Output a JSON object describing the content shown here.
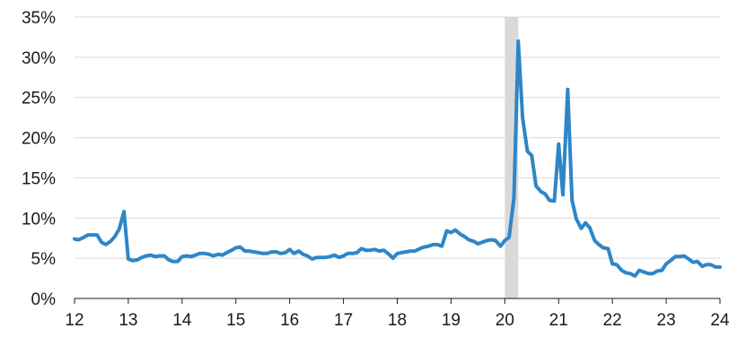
{
  "chart_data": {
    "type": "line",
    "title": "",
    "xlabel": "",
    "ylabel": "",
    "xlim": [
      2012,
      2024
    ],
    "ylim": [
      0,
      35
    ],
    "grid": true,
    "legend": "none",
    "y_tick_values": [
      0,
      5,
      10,
      15,
      20,
      25,
      30,
      35
    ],
    "y_tick_labels": [
      "0%",
      "5%",
      "10%",
      "15%",
      "20%",
      "25%",
      "30%",
      "35%"
    ],
    "x_tick_values": [
      2012,
      2013,
      2014,
      2015,
      2016,
      2017,
      2018,
      2019,
      2020,
      2021,
      2022,
      2023,
      2024
    ],
    "x_tick_labels": [
      "12",
      "13",
      "14",
      "15",
      "16",
      "17",
      "18",
      "19",
      "20",
      "21",
      "22",
      "23",
      "24"
    ],
    "shaded_region": {
      "x_start": 2020.0,
      "x_end": 2020.25,
      "color": "#d9d9d9"
    },
    "line_color": "#2e86c8",
    "series": [
      {
        "x": [
          2012.0,
          2012.08,
          2012.17,
          2012.25,
          2012.33,
          2012.42,
          2012.5,
          2012.58,
          2012.67,
          2012.75,
          2012.83,
          2012.92,
          2013.0,
          2013.08,
          2013.17,
          2013.25,
          2013.33,
          2013.42,
          2013.5,
          2013.58,
          2013.67,
          2013.75,
          2013.83,
          2013.92,
          2014.0,
          2014.08,
          2014.17,
          2014.25,
          2014.33,
          2014.42,
          2014.5,
          2014.58,
          2014.67,
          2014.75,
          2014.83,
          2014.92,
          2015.0,
          2015.08,
          2015.17,
          2015.25,
          2015.33,
          2015.42,
          2015.5,
          2015.58,
          2015.67,
          2015.75,
          2015.83,
          2015.92,
          2016.0,
          2016.08,
          2016.17,
          2016.25,
          2016.33,
          2016.42,
          2016.5,
          2016.58,
          2016.67,
          2016.75,
          2016.83,
          2016.92,
          2017.0,
          2017.08,
          2017.17,
          2017.25,
          2017.33,
          2017.42,
          2017.5,
          2017.58,
          2017.67,
          2017.75,
          2017.83,
          2017.92,
          2018.0,
          2018.08,
          2018.17,
          2018.25,
          2018.33,
          2018.42,
          2018.5,
          2018.58,
          2018.67,
          2018.75,
          2018.83,
          2018.92,
          2019.0,
          2019.08,
          2019.17,
          2019.25,
          2019.33,
          2019.42,
          2019.5,
          2019.58,
          2019.67,
          2019.75,
          2019.83,
          2019.92,
          2020.0,
          2020.08,
          2020.17,
          2020.25,
          2020.33,
          2020.42,
          2020.5,
          2020.58,
          2020.67,
          2020.75,
          2020.83,
          2020.92,
          2021.0,
          2021.08,
          2021.17,
          2021.25,
          2021.33,
          2021.42,
          2021.5,
          2021.58,
          2021.67,
          2021.75,
          2021.83,
          2021.92,
          2022.0,
          2022.08,
          2022.17,
          2022.25,
          2022.33,
          2022.42,
          2022.5,
          2022.58,
          2022.67,
          2022.75,
          2022.83,
          2022.92,
          2023.0,
          2023.08,
          2023.17,
          2023.25,
          2023.33,
          2023.42,
          2023.5,
          2023.58,
          2023.67,
          2023.75,
          2023.83,
          2023.92,
          2024.0
        ],
        "y": [
          7.4,
          7.3,
          7.6,
          7.9,
          7.9,
          7.9,
          7.0,
          6.7,
          7.1,
          7.7,
          8.6,
          10.8,
          4.9,
          4.7,
          4.8,
          5.1,
          5.3,
          5.4,
          5.2,
          5.3,
          5.3,
          4.8,
          4.6,
          4.6,
          5.2,
          5.3,
          5.2,
          5.4,
          5.6,
          5.6,
          5.5,
          5.3,
          5.5,
          5.4,
          5.7,
          6.0,
          6.3,
          6.4,
          5.9,
          5.9,
          5.8,
          5.7,
          5.6,
          5.6,
          5.8,
          5.8,
          5.6,
          5.7,
          6.1,
          5.6,
          5.9,
          5.5,
          5.3,
          4.9,
          5.1,
          5.1,
          5.1,
          5.2,
          5.4,
          5.1,
          5.3,
          5.6,
          5.6,
          5.7,
          6.2,
          6.0,
          6.0,
          6.1,
          5.9,
          6.0,
          5.6,
          5.0,
          5.6,
          5.7,
          5.8,
          5.9,
          5.9,
          6.2,
          6.4,
          6.5,
          6.7,
          6.7,
          6.5,
          8.4,
          8.2,
          8.5,
          8.0,
          7.7,
          7.3,
          7.1,
          6.8,
          7.0,
          7.2,
          7.3,
          7.2,
          6.5,
          7.2,
          7.6,
          12.5,
          32.0,
          22.5,
          18.3,
          17.8,
          14.0,
          13.3,
          13.0,
          12.2,
          12.1,
          19.2,
          12.9,
          26.0,
          12.2,
          9.9,
          8.7,
          9.4,
          8.8,
          7.2,
          6.7,
          6.3,
          6.2,
          4.3,
          4.2,
          3.5,
          3.2,
          3.1,
          2.8,
          3.5,
          3.3,
          3.1,
          3.1,
          3.4,
          3.5,
          4.3,
          4.7,
          5.2,
          5.2,
          5.3,
          4.9,
          4.5,
          4.6,
          4.0,
          4.2,
          4.2,
          3.9,
          3.9
        ]
      }
    ]
  }
}
